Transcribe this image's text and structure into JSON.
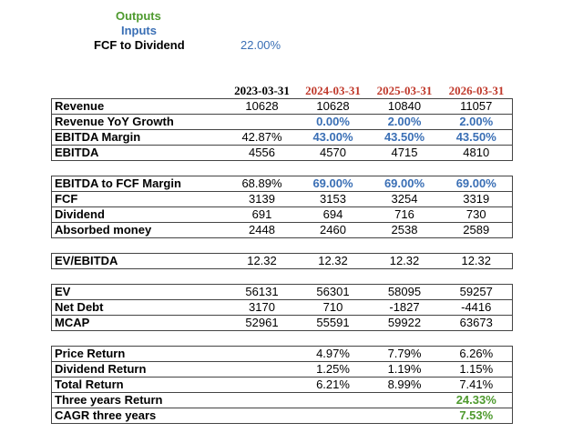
{
  "legend": {
    "outputs_label": "Outputs",
    "inputs_label": "Inputs",
    "fcf_to_dividend_label": "FCF to Dividend",
    "fcf_to_dividend_value": "22.00%"
  },
  "colors": {
    "output": "#4e9a2e",
    "input": "#3a6fb5",
    "projected_date": "#c0392b"
  },
  "table": {
    "dates": [
      "2023-03-31",
      "2024-03-31",
      "2025-03-31",
      "2026-03-31"
    ],
    "rows": {
      "revenue": {
        "label": "Revenue",
        "values": [
          "10628",
          "10628",
          "10840",
          "11057"
        ]
      },
      "revenue_growth": {
        "label": "Revenue YoY Growth",
        "values": [
          "",
          "0.00%",
          "2.00%",
          "2.00%"
        ]
      },
      "ebitda_margin": {
        "label": "EBITDA Margin",
        "values": [
          "42.87%",
          "43.00%",
          "43.50%",
          "43.50%"
        ]
      },
      "ebitda": {
        "label": "EBITDA",
        "values": [
          "4556",
          "4570",
          "4715",
          "4810"
        ]
      },
      "ebitda_to_fcf": {
        "label": "EBITDA to FCF Margin",
        "values": [
          "68.89%",
          "69.00%",
          "69.00%",
          "69.00%"
        ]
      },
      "fcf": {
        "label": "FCF",
        "values": [
          "3139",
          "3153",
          "3254",
          "3319"
        ]
      },
      "dividend": {
        "label": "Dividend",
        "values": [
          "691",
          "694",
          "716",
          "730"
        ]
      },
      "absorbed": {
        "label": "Absorbed money",
        "values": [
          "2448",
          "2460",
          "2538",
          "2589"
        ]
      },
      "ev_ebitda": {
        "label": "EV/EBITDA",
        "values": [
          "12.32",
          "12.32",
          "12.32",
          "12.32"
        ]
      },
      "ev": {
        "label": "EV",
        "values": [
          "56131",
          "56301",
          "58095",
          "59257"
        ]
      },
      "net_debt": {
        "label": "Net Debt",
        "values": [
          "3170",
          "710",
          "-1827",
          "-4416"
        ]
      },
      "mcap": {
        "label": "MCAP",
        "values": [
          "52961",
          "55591",
          "59922",
          "63673"
        ]
      },
      "price_return": {
        "label": "Price Return",
        "values": [
          "",
          "4.97%",
          "7.79%",
          "6.26%"
        ]
      },
      "dividend_return": {
        "label": "Dividend Return",
        "values": [
          "",
          "1.25%",
          "1.19%",
          "1.15%"
        ]
      },
      "total_return": {
        "label": "Total Return",
        "values": [
          "",
          "6.21%",
          "8.99%",
          "7.41%"
        ]
      },
      "three_year_return": {
        "label": "Three years Return",
        "values": [
          "",
          "",
          "",
          "24.33%"
        ]
      },
      "cagr": {
        "label": "CAGR three years",
        "values": [
          "",
          "",
          "",
          "7.53%"
        ]
      }
    }
  }
}
